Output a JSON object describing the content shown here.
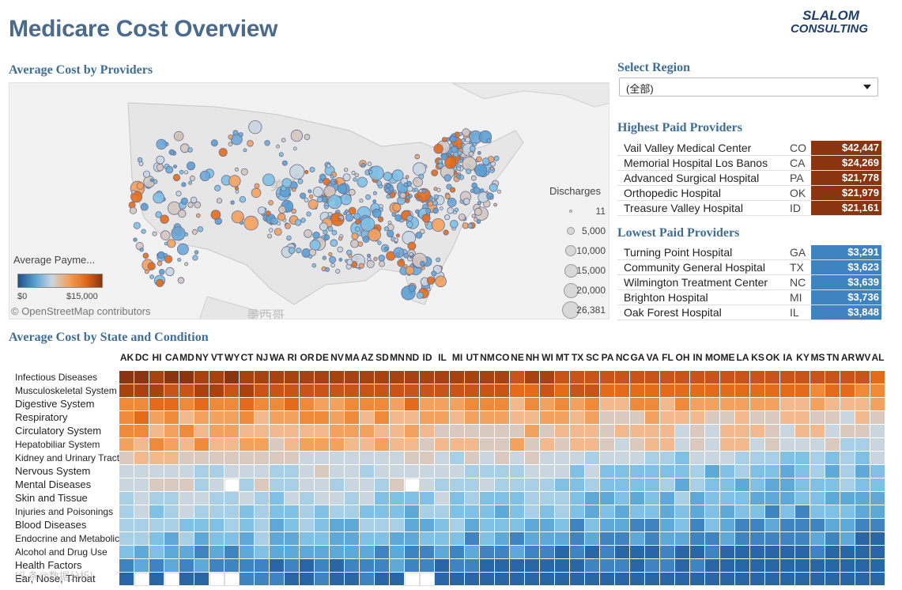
{
  "title": "Medicare Cost Overview",
  "logo": {
    "line1": "SLALOM",
    "line2": "CONSULTING"
  },
  "map": {
    "heading": "Average Cost  by Providers",
    "legend_title": "Average Payme...",
    "legend_min": "$0",
    "legend_max": "$15,000",
    "attribution": "© OpenStreetMap contributors",
    "discharges_title": "Discharges",
    "discharges": [
      "11",
      "5,000",
      "10,000",
      "15,000",
      "20,000",
      "26,381"
    ]
  },
  "region": {
    "heading": "Select Region",
    "selected": "(全部)"
  },
  "highest": {
    "heading": "Highest Paid Providers",
    "rows": [
      {
        "name": "Vail Valley Medical Center",
        "state": "CO",
        "value": "$42,447"
      },
      {
        "name": "Memorial Hospital Los Banos",
        "state": "CA",
        "value": "$24,269"
      },
      {
        "name": "Advanced Surgical Hospital",
        "state": "PA",
        "value": "$21,778"
      },
      {
        "name": "Orthopedic Hospital",
        "state": "OK",
        "value": "$21,979"
      },
      {
        "name": "Treasure Valley Hospital",
        "state": "ID",
        "value": "$21,161"
      }
    ]
  },
  "lowest": {
    "heading": "Lowest Paid Providers",
    "rows": [
      {
        "name": "Turning Point Hospital",
        "state": "GA",
        "value": "$3,291"
      },
      {
        "name": "Community General Hospital",
        "state": "TX",
        "value": "$3,623"
      },
      {
        "name": "Wilmington Treatment Center",
        "state": "NC",
        "value": "$3,639"
      },
      {
        "name": "Brighton Hospital",
        "state": "MI",
        "value": "$3,736"
      },
      {
        "name": "Oak Forest Hospital",
        "state": "IL",
        "value": "$3,848"
      }
    ]
  },
  "heatmap": {
    "heading": "Average Cost by State and Condition",
    "states": [
      "AK",
      "DC",
      "HI",
      "CA",
      "MD",
      "NY",
      "VT",
      "WY",
      "CT",
      "NJ",
      "WA",
      "RI",
      "OR",
      "DE",
      "NV",
      "MA",
      "AZ",
      "SD",
      "MN",
      "ND",
      "ID",
      "IL",
      "MI",
      "UT",
      "NM",
      "CO",
      "NE",
      "NH",
      "WI",
      "MT",
      "TX",
      "SC",
      "PA",
      "NC",
      "GA",
      "VA",
      "FL",
      "OH",
      "IN",
      "MO",
      "ME",
      "LA",
      "KS",
      "OK",
      "IA",
      "KY",
      "MS",
      "TN",
      "AR",
      "WV",
      "AL"
    ],
    "conditions": [
      "Infectious Diseases",
      "Musculoskeletal System",
      "Digestive System",
      "Respiratory",
      "Circulatory System",
      "Hepatobiliar System",
      "Kidney and Urinary Tract",
      "Nervous System",
      "Mental Diseases",
      "Skin and Tissue",
      "Injuries and Poisonings",
      "Blood Diseases",
      "Endocrine and Metabolic",
      "Alcohol and Drug Use",
      "Health Factors",
      "Ear, Nose, Throat"
    ],
    "colors": {
      "dark_orange": "#8a3510",
      "orange": "#e36b1b",
      "light_orange": "#f3a15e",
      "neutral": "#c9d6e0",
      "light_blue": "#7fc0e4",
      "blue": "#3f84c0",
      "dark_blue": "#1c4f8c"
    }
  },
  "colors": {
    "accent": "#3f6e95",
    "high_value": "#8a3510",
    "low_value": "#3f84c0"
  },
  "watermark": "[头条@数据分析]"
}
